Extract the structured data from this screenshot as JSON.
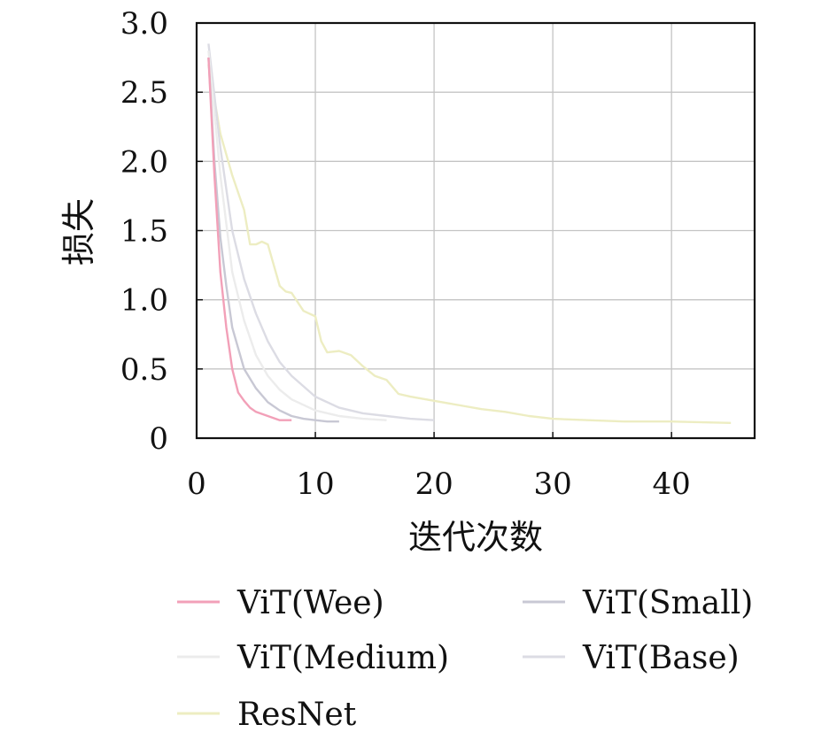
{
  "chart_data": {
    "type": "line",
    "title": "",
    "xlabel": "迭代次数",
    "ylabel": "损失",
    "xlim": [
      0,
      47
    ],
    "ylim": [
      0,
      3.0
    ],
    "xticks": [
      "0",
      "10",
      "20",
      "30",
      "40"
    ],
    "yticks": [
      "0",
      "0.5",
      "1.0",
      "1.5",
      "2.0",
      "2.5",
      "3.0"
    ],
    "grid": true,
    "legend_position": "bottom",
    "series": [
      {
        "name": "ViT(Wee)",
        "color": "#f2a0b8",
        "x": [
          1,
          1.5,
          2,
          2.5,
          3,
          3.5,
          4,
          4.5,
          5,
          6,
          7,
          8
        ],
        "y": [
          2.75,
          1.9,
          1.2,
          0.8,
          0.5,
          0.33,
          0.27,
          0.22,
          0.19,
          0.16,
          0.13,
          0.13
        ]
      },
      {
        "name": "ViT(Small)",
        "color": "#c8c8d4",
        "x": [
          1,
          1.5,
          2,
          2.5,
          3,
          4,
          5,
          6,
          7,
          8,
          9,
          10,
          11,
          12
        ],
        "y": [
          2.75,
          2.0,
          1.45,
          1.1,
          0.8,
          0.5,
          0.36,
          0.26,
          0.2,
          0.16,
          0.14,
          0.13,
          0.12,
          0.12
        ]
      },
      {
        "name": "ViT(Medium)",
        "color": "#ececec",
        "x": [
          1,
          2,
          3,
          4,
          5,
          6,
          7,
          8,
          10,
          12,
          14,
          16
        ],
        "y": [
          2.8,
          1.9,
          1.2,
          0.85,
          0.6,
          0.45,
          0.35,
          0.28,
          0.2,
          0.16,
          0.14,
          0.13
        ]
      },
      {
        "name": "ViT(Base)",
        "color": "#dcdce4",
        "x": [
          1,
          2,
          3,
          4,
          5,
          6,
          7,
          8,
          10,
          12,
          14,
          16,
          18,
          20
        ],
        "y": [
          2.85,
          2.1,
          1.5,
          1.15,
          0.9,
          0.7,
          0.55,
          0.45,
          0.3,
          0.22,
          0.18,
          0.16,
          0.14,
          0.13
        ]
      },
      {
        "name": "ResNet",
        "color": "#ededc2",
        "x": [
          1,
          2,
          3,
          4,
          4.5,
          5,
          5.5,
          6,
          7,
          7.5,
          8,
          9,
          9.5,
          10,
          10.5,
          11,
          12,
          13,
          14,
          15,
          16,
          17,
          18,
          20,
          22,
          24,
          26,
          28,
          30,
          33,
          36,
          40,
          45
        ],
        "y": [
          2.7,
          2.2,
          1.9,
          1.65,
          1.4,
          1.4,
          1.42,
          1.4,
          1.1,
          1.06,
          1.05,
          0.92,
          0.9,
          0.88,
          0.7,
          0.62,
          0.63,
          0.6,
          0.52,
          0.45,
          0.42,
          0.32,
          0.3,
          0.27,
          0.24,
          0.21,
          0.19,
          0.16,
          0.14,
          0.13,
          0.12,
          0.12,
          0.11
        ]
      }
    ]
  }
}
